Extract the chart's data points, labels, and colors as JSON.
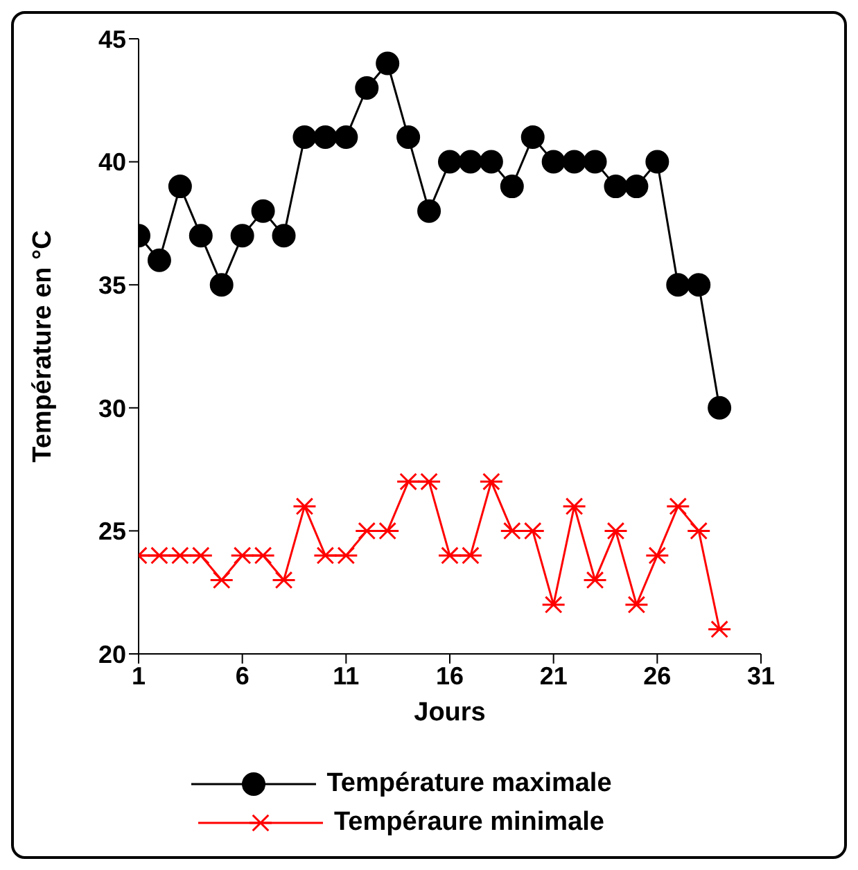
{
  "chart_data": {
    "type": "line",
    "xlabel": "Jours",
    "ylabel": "Température en °C",
    "x": [
      1,
      2,
      3,
      4,
      5,
      6,
      7,
      8,
      9,
      10,
      11,
      12,
      13,
      14,
      15,
      16,
      17,
      18,
      19,
      20,
      21,
      22,
      23,
      24,
      25,
      26,
      27,
      28,
      29
    ],
    "xlim": [
      1,
      31
    ],
    "xticks": [
      1,
      6,
      11,
      16,
      21,
      26,
      31
    ],
    "ylim": [
      20,
      45
    ],
    "yticks": [
      20,
      25,
      30,
      35,
      40,
      45
    ],
    "grid": false,
    "legend": "bottom",
    "line_style": "solid",
    "series": [
      {
        "name": "Température maximale",
        "color": "#000000",
        "marker": "circle",
        "values": [
          37,
          36,
          39,
          37,
          35,
          37,
          38,
          37,
          41,
          41,
          41,
          43,
          44,
          41,
          38,
          40,
          40,
          40,
          39,
          41,
          40,
          40,
          40,
          39,
          39,
          40,
          35,
          35,
          30
        ]
      },
      {
        "name": "Tempéraure minimale",
        "color": "#ff0000",
        "marker": "cross",
        "values": [
          24,
          24,
          24,
          24,
          23,
          24,
          24,
          23,
          26,
          24,
          24,
          25,
          25,
          27,
          27,
          24,
          24,
          27,
          25,
          25,
          22,
          26,
          23,
          25,
          22,
          24,
          26,
          25,
          21
        ]
      }
    ]
  }
}
